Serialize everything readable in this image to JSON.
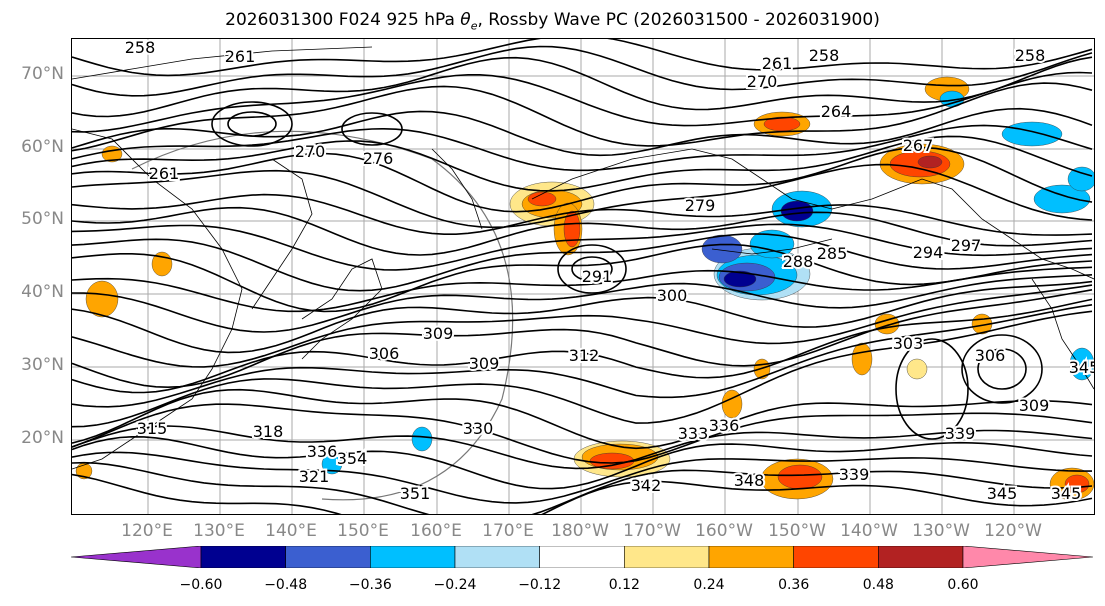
{
  "title_prefix": "2026031300 F024 925 hPa ",
  "title_symbol": "θ",
  "title_subscript": "e",
  "title_suffix": ", Rossby Wave PC (2026031500 - 2026031900)",
  "lat_labels": [
    "70°N",
    "60°N",
    "50°N",
    "40°N",
    "30°N",
    "20°N"
  ],
  "lon_labels": [
    "120°E",
    "130°E",
    "140°E",
    "150°E",
    "160°E",
    "170°E",
    "180°W",
    "170°W",
    "160°W",
    "150°W",
    "140°W",
    "130°W",
    "120°W"
  ],
  "contour_labels": [
    "258",
    "261",
    "261",
    "270",
    "276",
    "270",
    "261",
    "258",
    "264",
    "267",
    "258",
    "279",
    "285",
    "288",
    "291",
    "294",
    "297",
    "300",
    "306",
    "309",
    "309",
    "312",
    "303",
    "306",
    "309",
    "315",
    "318",
    "321",
    "330",
    "333",
    "336",
    "339",
    "342",
    "345",
    "345",
    "348",
    "351",
    "354",
    "336",
    "339",
    "345"
  ],
  "colorbar": {
    "ticks": [
      "−0.60",
      "−0.48",
      "−0.36",
      "−0.24",
      "−0.12",
      "0.12",
      "0.24",
      "0.36",
      "0.48",
      "0.60"
    ],
    "colors": [
      "#9932cc",
      "#000090",
      "#3b5fd0",
      "#00bfff",
      "#b0e0f5",
      "#ffffff",
      "#ffe78a",
      "#ffa500",
      "#ff4500",
      "#b22222",
      "#ff88aa"
    ]
  },
  "colors": {
    "contour": "#000000",
    "grid": "#aaaaaa",
    "coastline": "#000000"
  }
}
